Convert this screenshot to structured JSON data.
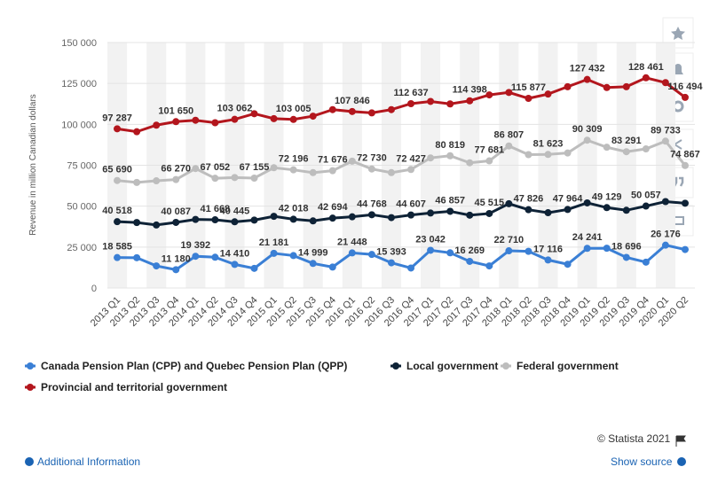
{
  "chart_data": {
    "type": "line",
    "y_axis_label": "Revenue in million Canadian dollars",
    "categories": [
      "2013 Q1",
      "2013 Q2",
      "2013 Q3",
      "2013 Q4",
      "2014 Q1",
      "2014 Q2",
      "2014 Q3",
      "2014 Q4",
      "2015 Q1",
      "2015 Q2",
      "2015 Q3",
      "2015 Q4",
      "2016 Q1",
      "2016 Q2",
      "2016 Q3",
      "2016 Q4",
      "2017 Q1",
      "2017 Q2",
      "2017 Q3",
      "2017 Q4",
      "2018 Q1",
      "2018 Q2",
      "2018 Q3",
      "2018 Q4",
      "2019 Q1",
      "2019 Q2",
      "2019 Q3",
      "2019 Q4",
      "2020 Q1",
      "2020 Q2"
    ],
    "ylim": [
      0,
      150000
    ],
    "yticks": [
      0,
      {
        "value": 25000,
        "label": "25 000"
      },
      {
        "value": 50000,
        "label": "50 000"
      },
      {
        "value": 75000,
        "label": "75 000"
      },
      {
        "value": 100000,
        "label": "100 000"
      },
      {
        "value": 125000,
        "label": "125 000"
      },
      {
        "value": 150000,
        "label": "150 000"
      }
    ],
    "grid": true,
    "series": [
      {
        "name": "Canada Pension Plan (CPP) and Quebec Pension Plan (QPP)",
        "color": "#3a7fd5",
        "values": [
          18585,
          18500,
          13500,
          11180,
          19392,
          18800,
          14410,
          12000,
          21181,
          19800,
          14999,
          12800,
          21448,
          20500,
          15393,
          12200,
          23042,
          21500,
          16269,
          13500,
          22710,
          22400,
          17116,
          14500,
          24241,
          24300,
          18696,
          15800,
          26176,
          23500
        ],
        "value_labels": [
          "18 585",
          null,
          null,
          "11 180",
          "19 392",
          null,
          "14 410",
          null,
          "21 181",
          null,
          "14 999",
          null,
          "21 448",
          null,
          "15 393",
          null,
          "23 042",
          null,
          "16 269",
          null,
          "22 710",
          null,
          "17 116",
          null,
          "24 241",
          null,
          "18 696",
          null,
          "26 176",
          null
        ]
      },
      {
        "name": "Local government",
        "color": "#0e2236",
        "values": [
          40518,
          40000,
          38500,
          40087,
          41900,
          41668,
          40445,
          41500,
          43800,
          42018,
          41000,
          42694,
          43500,
          44768,
          43000,
          44607,
          45800,
          46857,
          44500,
          45515,
          51500,
          47826,
          46000,
          47964,
          52000,
          49129,
          47500,
          50057,
          52800,
          51800
        ],
        "value_labels": [
          "40 518",
          null,
          null,
          "40 087",
          null,
          "41 668",
          "40 445",
          null,
          null,
          "42 018",
          null,
          "42 694",
          null,
          "44 768",
          null,
          "44 607",
          null,
          "46 857",
          null,
          "45 515",
          null,
          "47 826",
          null,
          "47 964",
          null,
          "49 129",
          null,
          "50 057",
          null,
          null
        ]
      },
      {
        "name": "Federal government",
        "color": "#bdbdbd",
        "values": [
          65690,
          64500,
          65500,
          66270,
          73000,
          67052,
          67500,
          67155,
          73500,
          72196,
          70500,
          71676,
          77500,
          72730,
          70500,
          72427,
          79500,
          80819,
          76500,
          77681,
          86807,
          81500,
          81623,
          82500,
          90309,
          86000,
          83291,
          85000,
          89733,
          74867
        ],
        "value_labels": [
          "65 690",
          null,
          null,
          "66 270",
          null,
          "67 052",
          null,
          "67 155",
          null,
          "72 196",
          null,
          "71 676",
          null,
          "72 730",
          null,
          "72 427",
          null,
          "80 819",
          null,
          "77 681",
          "86 807",
          null,
          "81 623",
          null,
          "90 309",
          null,
          "83 291",
          null,
          "89 733",
          "74 867"
        ]
      },
      {
        "name": "Provincial and territorial government",
        "color": "#b3161d",
        "values": [
          97287,
          95500,
          99500,
          101650,
          102500,
          101000,
          103062,
          106500,
          103500,
          103005,
          105000,
          109000,
          107846,
          107000,
          109000,
          112637,
          114000,
          112500,
          114398,
          118000,
          119500,
          115877,
          118500,
          123000,
          127432,
          122500,
          123000,
          128461,
          125500,
          116494
        ],
        "value_labels": [
          "97 287",
          null,
          null,
          "101 650",
          null,
          null,
          "103 062",
          null,
          null,
          "103 005",
          null,
          null,
          "107 846",
          null,
          null,
          "112 637",
          null,
          null,
          "114 398",
          null,
          null,
          "115 877",
          null,
          null,
          "127 432",
          null,
          null,
          "128 461",
          null,
          "116 494"
        ]
      }
    ]
  },
  "footer": {
    "copyright": "© Statista 2021",
    "additional_info": "Additional Information",
    "show_source": "Show source"
  }
}
